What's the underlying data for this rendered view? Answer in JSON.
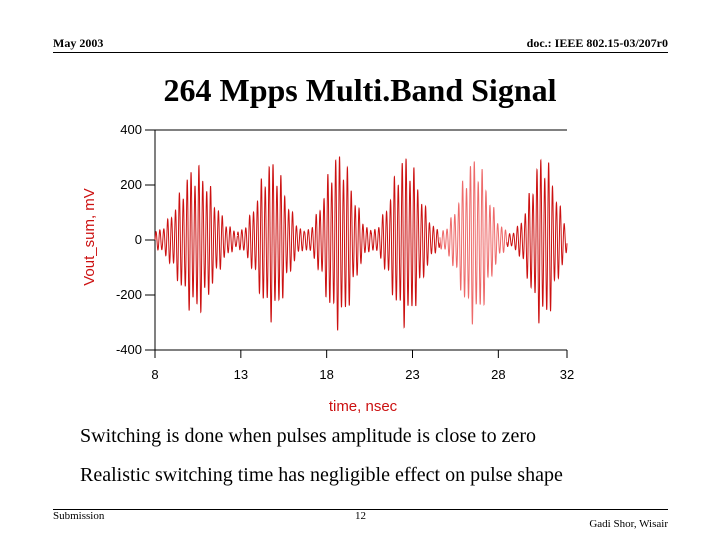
{
  "header": {
    "left": "May 2003",
    "right": "doc.: IEEE 802.15-03/207r0"
  },
  "title": "264 Mpps Multi.Band Signal",
  "chart_data": {
    "type": "line",
    "title": "",
    "xlabel": "time, nsec",
    "ylabel": "Vout_sum, mV",
    "xlim": [
      8,
      32
    ],
    "ylim": [
      -400,
      400
    ],
    "xticks": [
      8,
      13,
      18,
      23,
      28,
      32
    ],
    "yticks": [
      -400,
      -200,
      0,
      200,
      400
    ],
    "grid": false,
    "series": [
      {
        "color": "#cc1111",
        "segments": [
          {
            "start": 8.0,
            "end": 12.8,
            "peak_amplitude": 280,
            "peak_time": 10.4,
            "trough_amplitude": 20
          },
          {
            "start": 12.8,
            "end": 16.7,
            "peak_amplitude": 300,
            "peak_time": 14.8,
            "trough_amplitude": 20
          },
          {
            "start": 16.7,
            "end": 20.6,
            "peak_amplitude": 330,
            "peak_time": 18.7,
            "trough_amplitude": 20
          },
          {
            "start": 20.6,
            "end": 24.6,
            "peak_amplitude": 320,
            "peak_time": 22.6,
            "trough_amplitude": 20
          },
          {
            "start": 24.6,
            "end": 28.5,
            "peak_amplitude": 310,
            "peak_time": 26.6,
            "trough_amplitude": 20
          },
          {
            "start": 28.5,
            "end": 32.0,
            "peak_amplitude": 320,
            "peak_time": 30.6,
            "trough_amplitude": 20
          }
        ],
        "highlight_color": "#ee6a6a",
        "highlight_range": [
          24.6,
          28.5
        ]
      }
    ]
  },
  "captions": [
    "Switching is done when pulses amplitude is close to zero",
    "Realistic switching time has negligible effect on pulse shape"
  ],
  "footer": {
    "left": "Submission",
    "center": "12",
    "right": "Gadi Shor, Wisair"
  }
}
